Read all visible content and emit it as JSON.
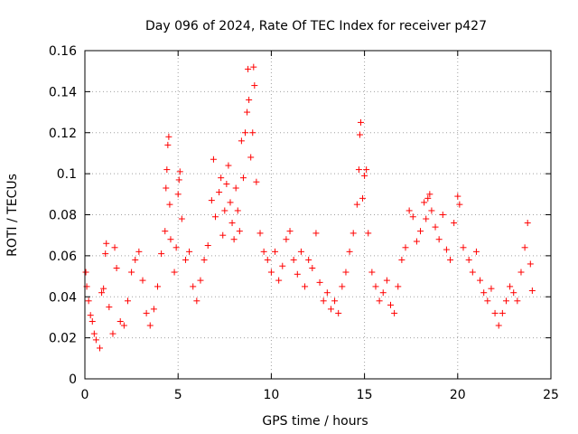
{
  "chart_data": {
    "type": "scatter",
    "title": "Day 096 of 2024, Rate Of TEC Index for receiver p427",
    "xlabel": "GPS time / hours",
    "ylabel": "ROTI / TECUs",
    "xlim": [
      0,
      25
    ],
    "ylim": [
      0,
      0.16
    ],
    "xticks": [
      0,
      5,
      10,
      15,
      20,
      25
    ],
    "xtick_labels": [
      "0",
      "5",
      "10",
      "15",
      "20",
      "25"
    ],
    "yticks": [
      0,
      0.02,
      0.04,
      0.06,
      0.08,
      0.1,
      0.12,
      0.14,
      0.16
    ],
    "ytick_labels": [
      "0",
      "0.02",
      "0.04",
      "0.06",
      "0.08",
      "0.1",
      "0.12",
      "0.14",
      "0.16"
    ],
    "grid": true,
    "marker": "+",
    "color": "#ff0000",
    "series": [
      {
        "name": "ROTI p427",
        "points": [
          [
            0.05,
            0.052
          ],
          [
            0.1,
            0.045
          ],
          [
            0.2,
            0.038
          ],
          [
            0.3,
            0.031
          ],
          [
            0.4,
            0.028
          ],
          [
            0.5,
            0.022
          ],
          [
            0.6,
            0.019
          ],
          [
            0.8,
            0.015
          ],
          [
            0.9,
            0.042
          ],
          [
            1.0,
            0.044
          ],
          [
            1.1,
            0.061
          ],
          [
            1.15,
            0.066
          ],
          [
            1.3,
            0.035
          ],
          [
            1.5,
            0.022
          ],
          [
            1.6,
            0.064
          ],
          [
            1.7,
            0.054
          ],
          [
            1.9,
            0.028
          ],
          [
            2.1,
            0.026
          ],
          [
            2.3,
            0.038
          ],
          [
            2.5,
            0.052
          ],
          [
            2.7,
            0.058
          ],
          [
            2.9,
            0.062
          ],
          [
            3.1,
            0.048
          ],
          [
            3.3,
            0.032
          ],
          [
            3.5,
            0.026
          ],
          [
            3.7,
            0.034
          ],
          [
            3.9,
            0.045
          ],
          [
            4.1,
            0.061
          ],
          [
            4.3,
            0.072
          ],
          [
            4.35,
            0.093
          ],
          [
            4.4,
            0.102
          ],
          [
            4.45,
            0.114
          ],
          [
            4.5,
            0.118
          ],
          [
            4.55,
            0.085
          ],
          [
            4.6,
            0.068
          ],
          [
            4.8,
            0.052
          ],
          [
            4.9,
            0.064
          ],
          [
            5.0,
            0.09
          ],
          [
            5.05,
            0.097
          ],
          [
            5.1,
            0.101
          ],
          [
            5.2,
            0.078
          ],
          [
            5.4,
            0.058
          ],
          [
            5.6,
            0.062
          ],
          [
            5.8,
            0.045
          ],
          [
            6.0,
            0.038
          ],
          [
            6.2,
            0.048
          ],
          [
            6.4,
            0.058
          ],
          [
            6.6,
            0.065
          ],
          [
            6.8,
            0.087
          ],
          [
            6.9,
            0.107
          ],
          [
            7.0,
            0.079
          ],
          [
            7.2,
            0.091
          ],
          [
            7.3,
            0.098
          ],
          [
            7.4,
            0.07
          ],
          [
            7.5,
            0.082
          ],
          [
            7.6,
            0.095
          ],
          [
            7.7,
            0.104
          ],
          [
            7.8,
            0.086
          ],
          [
            7.9,
            0.076
          ],
          [
            8.0,
            0.068
          ],
          [
            8.1,
            0.093
          ],
          [
            8.2,
            0.082
          ],
          [
            8.3,
            0.072
          ],
          [
            8.4,
            0.116
          ],
          [
            8.5,
            0.098
          ],
          [
            8.6,
            0.12
          ],
          [
            8.7,
            0.13
          ],
          [
            8.75,
            0.151
          ],
          [
            8.8,
            0.136
          ],
          [
            8.9,
            0.108
          ],
          [
            9.0,
            0.12
          ],
          [
            9.05,
            0.152
          ],
          [
            9.1,
            0.143
          ],
          [
            9.2,
            0.096
          ],
          [
            9.4,
            0.071
          ],
          [
            9.6,
            0.062
          ],
          [
            9.8,
            0.058
          ],
          [
            10.0,
            0.052
          ],
          [
            10.2,
            0.062
          ],
          [
            10.4,
            0.048
          ],
          [
            10.6,
            0.055
          ],
          [
            10.8,
            0.068
          ],
          [
            11.0,
            0.072
          ],
          [
            11.2,
            0.058
          ],
          [
            11.4,
            0.051
          ],
          [
            11.6,
            0.062
          ],
          [
            11.8,
            0.045
          ],
          [
            12.0,
            0.058
          ],
          [
            12.2,
            0.054
          ],
          [
            12.4,
            0.071
          ],
          [
            12.6,
            0.047
          ],
          [
            12.8,
            0.038
          ],
          [
            13.0,
            0.042
          ],
          [
            13.2,
            0.034
          ],
          [
            13.4,
            0.038
          ],
          [
            13.6,
            0.032
          ],
          [
            13.8,
            0.045
          ],
          [
            14.0,
            0.052
          ],
          [
            14.2,
            0.062
          ],
          [
            14.4,
            0.071
          ],
          [
            14.6,
            0.085
          ],
          [
            14.7,
            0.102
          ],
          [
            14.75,
            0.119
          ],
          [
            14.8,
            0.125
          ],
          [
            14.9,
            0.088
          ],
          [
            15.0,
            0.099
          ],
          [
            15.1,
            0.102
          ],
          [
            15.2,
            0.071
          ],
          [
            15.4,
            0.052
          ],
          [
            15.6,
            0.045
          ],
          [
            15.8,
            0.038
          ],
          [
            16.0,
            0.042
          ],
          [
            16.2,
            0.048
          ],
          [
            16.4,
            0.036
          ],
          [
            16.6,
            0.032
          ],
          [
            16.8,
            0.045
          ],
          [
            17.0,
            0.058
          ],
          [
            17.2,
            0.064
          ],
          [
            17.4,
            0.082
          ],
          [
            17.6,
            0.079
          ],
          [
            17.8,
            0.067
          ],
          [
            18.0,
            0.072
          ],
          [
            18.2,
            0.086
          ],
          [
            18.3,
            0.078
          ],
          [
            18.4,
            0.088
          ],
          [
            18.5,
            0.09
          ],
          [
            18.6,
            0.082
          ],
          [
            18.8,
            0.074
          ],
          [
            19.0,
            0.068
          ],
          [
            19.2,
            0.08
          ],
          [
            19.4,
            0.063
          ],
          [
            19.6,
            0.058
          ],
          [
            19.8,
            0.076
          ],
          [
            20.0,
            0.089
          ],
          [
            20.1,
            0.085
          ],
          [
            20.3,
            0.064
          ],
          [
            20.6,
            0.058
          ],
          [
            20.8,
            0.052
          ],
          [
            21.0,
            0.062
          ],
          [
            21.2,
            0.048
          ],
          [
            21.4,
            0.042
          ],
          [
            21.6,
            0.038
          ],
          [
            21.8,
            0.044
          ],
          [
            22.0,
            0.032
          ],
          [
            22.2,
            0.026
          ],
          [
            22.4,
            0.032
          ],
          [
            22.6,
            0.038
          ],
          [
            22.8,
            0.045
          ],
          [
            23.0,
            0.042
          ],
          [
            23.2,
            0.038
          ],
          [
            23.4,
            0.052
          ],
          [
            23.6,
            0.064
          ],
          [
            23.75,
            0.076
          ],
          [
            23.9,
            0.056
          ],
          [
            24.0,
            0.043
          ]
        ]
      }
    ]
  }
}
